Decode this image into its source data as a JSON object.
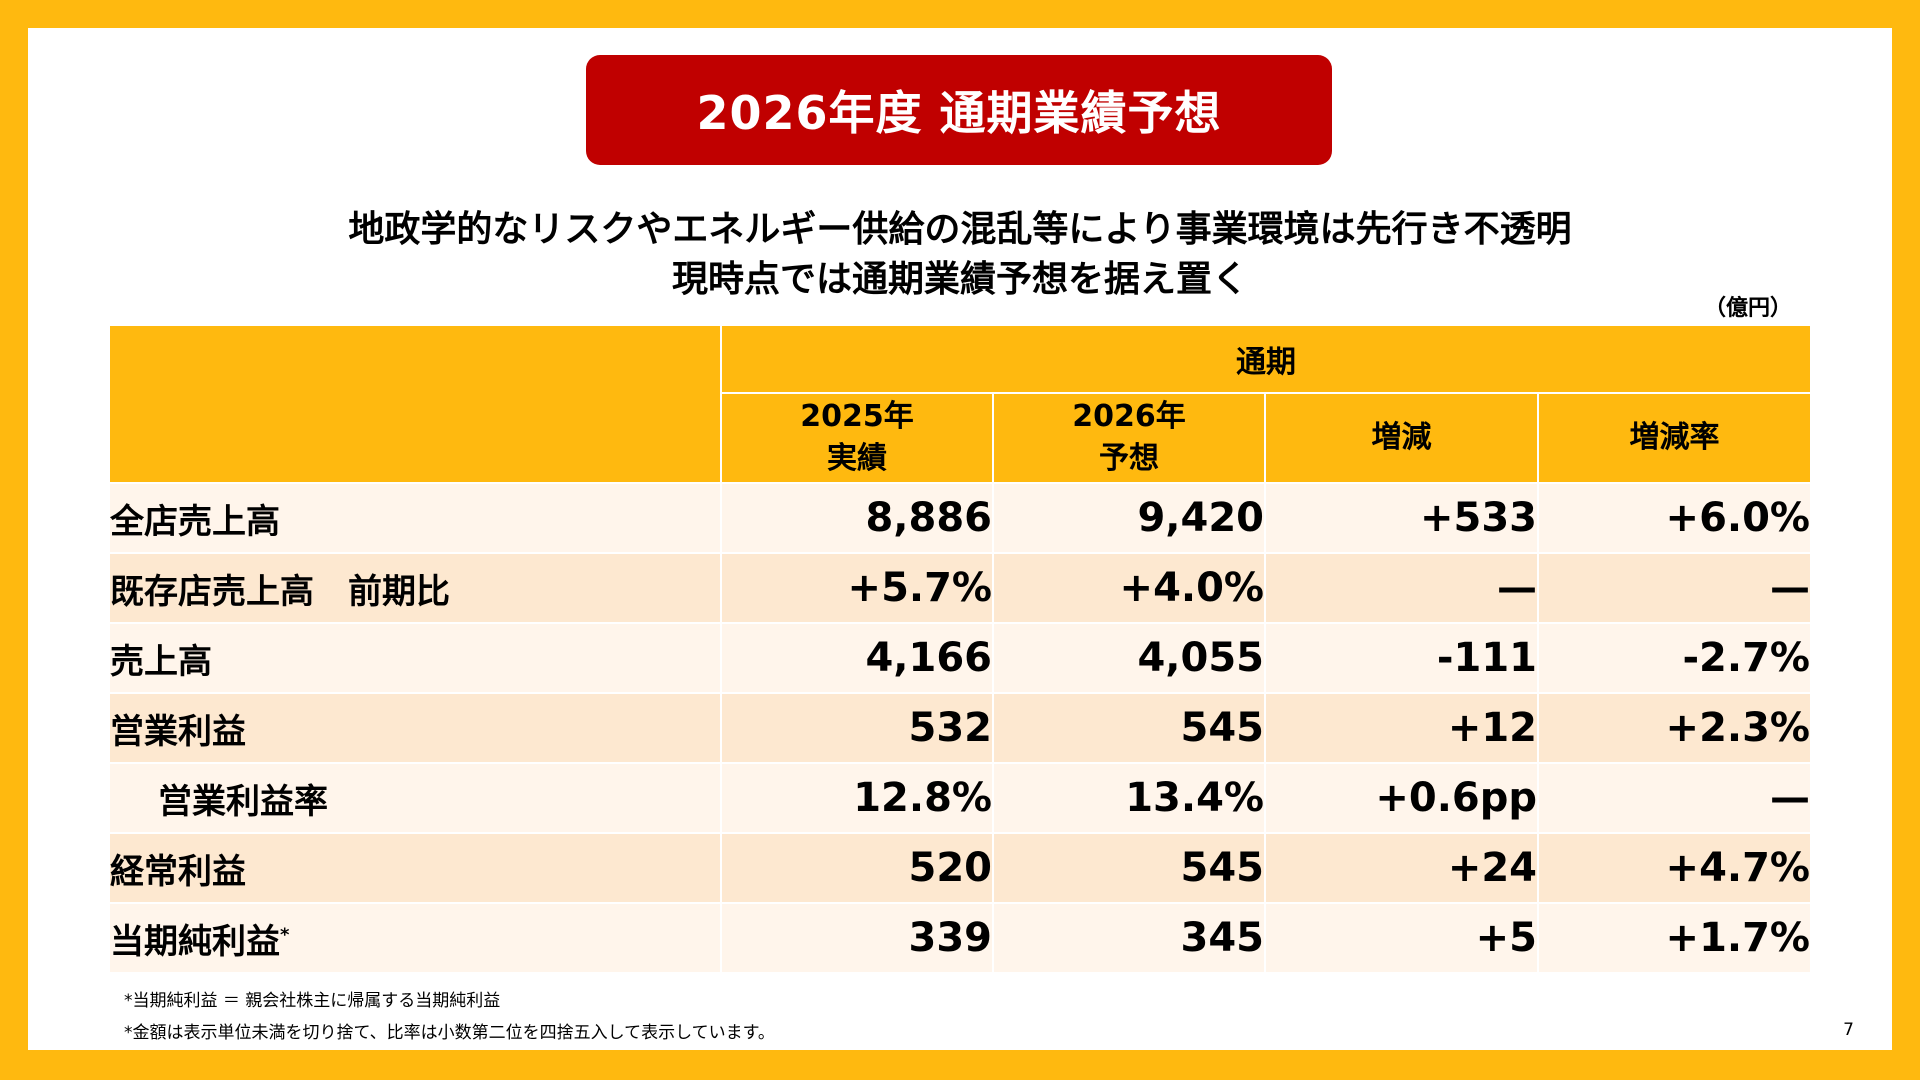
{
  "title": "2026年度 通期業績予想",
  "subtitle": {
    "line1": "地政学的なリスクやエネルギー供給の混乱等により事業環境は先行き不透明",
    "line2": "現時点では通期業績予想を据え置く"
  },
  "unit": "（億円）",
  "table": {
    "group_header": "通期",
    "columns": [
      {
        "line1": "2025年",
        "line2": "実績"
      },
      {
        "line1": "2026年",
        "line2": "予想"
      },
      {
        "line1": "増減",
        "line2": ""
      },
      {
        "line1": "増減率",
        "line2": ""
      }
    ],
    "rows": [
      {
        "label": "全店売上高",
        "values": [
          "8,886",
          "9,420",
          "+533",
          "+6.0%"
        ]
      },
      {
        "label": "既存店売上高　前期比",
        "values": [
          "+5.7%",
          "+4.0%",
          "—",
          "—"
        ]
      },
      {
        "label": "売上高",
        "values": [
          "4,166",
          "4,055",
          "-111",
          "-2.7%"
        ]
      },
      {
        "label": "営業利益",
        "values": [
          "532",
          "545",
          "+12",
          "+2.3%"
        ]
      },
      {
        "label": "営業利益率",
        "values": [
          "12.8%",
          "13.4%",
          "+0.6pp",
          "—"
        ]
      },
      {
        "label": "経常利益",
        "values": [
          "520",
          "545",
          "+24",
          "+4.7%"
        ]
      },
      {
        "label": "当期純利益",
        "values": [
          "339",
          "345",
          "+5",
          "+1.7%"
        ]
      }
    ],
    "footnote_marker": "*"
  },
  "notes": {
    "note1": "*当期純利益 ＝ 親会社株主に帰属する当期純利益",
    "note2": "*金額は表示単位未満を切り捨て、比率は小数第二位を四捨五入して表示しています。"
  },
  "page_number": "7",
  "colors": {
    "frame": "#FFB90F",
    "title_bg": "#C00000",
    "header_bg": "#FFB90F",
    "row_light": "#FFF5EB",
    "row_dark": "#FDE8D0"
  }
}
